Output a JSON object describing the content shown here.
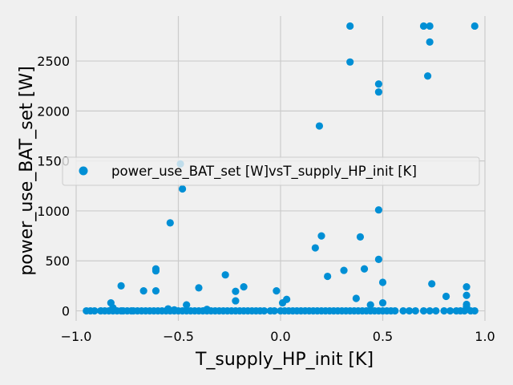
{
  "chart_data": {
    "type": "scatter",
    "xlabel": "T_supply_HP_init [K]",
    "ylabel": "power_use_BAT_set [W]",
    "xlim": [
      -1.0,
      1.0
    ],
    "ylim": [
      -100,
      2950
    ],
    "xticks": [
      "−1.0",
      "−0.5",
      "0.0",
      "0.5",
      "1.0"
    ],
    "xtick_values": [
      -1.0,
      -0.5,
      0.0,
      0.5,
      1.0
    ],
    "yticks": [
      "0",
      "500",
      "1000",
      "1500",
      "2000",
      "2500"
    ],
    "ytick_values": [
      0,
      500,
      1000,
      1500,
      2000,
      2500
    ],
    "grid": true,
    "legend_position": "center-right",
    "marker_color": "#008fd5",
    "series": [
      {
        "name": "power_use_BAT_set [W]vsT_supply_HP_init [K]",
        "points": [
          [
            -0.95,
            0
          ],
          [
            -0.93,
            0
          ],
          [
            -0.91,
            0
          ],
          [
            -0.88,
            0
          ],
          [
            -0.86,
            0
          ],
          [
            -0.84,
            0
          ],
          [
            -0.82,
            0
          ],
          [
            -0.8,
            0
          ],
          [
            -0.78,
            0
          ],
          [
            -0.77,
            0
          ],
          [
            -0.75,
            0
          ],
          [
            -0.73,
            0
          ],
          [
            -0.72,
            0
          ],
          [
            -0.7,
            0
          ],
          [
            -0.68,
            0
          ],
          [
            -0.66,
            0
          ],
          [
            -0.64,
            0
          ],
          [
            -0.62,
            0
          ],
          [
            -0.6,
            0
          ],
          [
            -0.58,
            0
          ],
          [
            -0.56,
            0
          ],
          [
            -0.54,
            0
          ],
          [
            -0.52,
            0
          ],
          [
            -0.5,
            0
          ],
          [
            -0.48,
            0
          ],
          [
            -0.46,
            0
          ],
          [
            -0.44,
            0
          ],
          [
            -0.42,
            0
          ],
          [
            -0.4,
            0
          ],
          [
            -0.38,
            0
          ],
          [
            -0.36,
            0
          ],
          [
            -0.34,
            0
          ],
          [
            -0.32,
            0
          ],
          [
            -0.3,
            0
          ],
          [
            -0.28,
            0
          ],
          [
            -0.26,
            0
          ],
          [
            -0.24,
            0
          ],
          [
            -0.22,
            0
          ],
          [
            -0.2,
            0
          ],
          [
            -0.18,
            0
          ],
          [
            -0.16,
            0
          ],
          [
            -0.14,
            0
          ],
          [
            -0.12,
            0
          ],
          [
            -0.1,
            0
          ],
          [
            -0.08,
            0
          ],
          [
            -0.05,
            0
          ],
          [
            -0.03,
            0
          ],
          [
            0.0,
            0
          ],
          [
            0.02,
            0
          ],
          [
            0.04,
            0
          ],
          [
            0.06,
            0
          ],
          [
            0.08,
            0
          ],
          [
            0.1,
            0
          ],
          [
            0.12,
            0
          ],
          [
            0.14,
            0
          ],
          [
            0.16,
            0
          ],
          [
            0.18,
            0
          ],
          [
            0.2,
            0
          ],
          [
            0.22,
            0
          ],
          [
            0.24,
            0
          ],
          [
            0.26,
            0
          ],
          [
            0.28,
            0
          ],
          [
            0.3,
            0
          ],
          [
            0.32,
            0
          ],
          [
            0.34,
            0
          ],
          [
            0.36,
            0
          ],
          [
            0.38,
            0
          ],
          [
            0.4,
            0
          ],
          [
            0.42,
            0
          ],
          [
            0.44,
            0
          ],
          [
            0.46,
            0
          ],
          [
            0.48,
            0
          ],
          [
            0.5,
            0
          ],
          [
            0.52,
            0
          ],
          [
            0.54,
            0
          ],
          [
            0.56,
            0
          ],
          [
            0.6,
            0
          ],
          [
            0.63,
            0
          ],
          [
            0.66,
            0
          ],
          [
            0.7,
            0
          ],
          [
            0.73,
            0
          ],
          [
            0.76,
            0
          ],
          [
            0.8,
            0
          ],
          [
            0.83,
            0
          ],
          [
            0.86,
            0
          ],
          [
            0.88,
            0
          ],
          [
            0.9,
            0
          ],
          [
            0.93,
            0
          ],
          [
            0.95,
            0
          ],
          [
            -0.83,
            80
          ],
          [
            -0.82,
            30
          ],
          [
            -0.78,
            250
          ],
          [
            -0.67,
            200
          ],
          [
            -0.61,
            420
          ],
          [
            -0.61,
            400
          ],
          [
            -0.61,
            200
          ],
          [
            -0.55,
            20
          ],
          [
            -0.52,
            10
          ],
          [
            -0.46,
            60
          ],
          [
            -0.4,
            230
          ],
          [
            -0.36,
            15
          ],
          [
            -0.27,
            360
          ],
          [
            -0.22,
            195
          ],
          [
            -0.22,
            100
          ],
          [
            -0.18,
            240
          ],
          [
            -0.02,
            200
          ],
          [
            0.01,
            80
          ],
          [
            0.03,
            115
          ],
          [
            0.17,
            630
          ],
          [
            0.2,
            750
          ],
          [
            0.23,
            345
          ],
          [
            0.31,
            405
          ],
          [
            0.37,
            125
          ],
          [
            0.41,
            420
          ],
          [
            0.44,
            60
          ],
          [
            0.48,
            515
          ],
          [
            0.5,
            285
          ],
          [
            0.5,
            80
          ],
          [
            0.74,
            270
          ],
          [
            0.81,
            145
          ],
          [
            0.91,
            240
          ],
          [
            0.91,
            155
          ],
          [
            0.91,
            65
          ],
          [
            0.91,
            40
          ],
          [
            -0.54,
            880
          ],
          [
            -0.48,
            1220
          ],
          [
            -0.49,
            1470
          ],
          [
            0.39,
            740
          ],
          [
            0.48,
            1010
          ],
          [
            0.19,
            1850
          ],
          [
            0.34,
            2490
          ],
          [
            0.34,
            2850
          ],
          [
            0.48,
            2190
          ],
          [
            0.48,
            2270
          ],
          [
            0.7,
            2850
          ],
          [
            0.73,
            2850
          ],
          [
            0.72,
            2350
          ],
          [
            0.73,
            2690
          ],
          [
            0.95,
            2850
          ]
        ]
      }
    ]
  }
}
